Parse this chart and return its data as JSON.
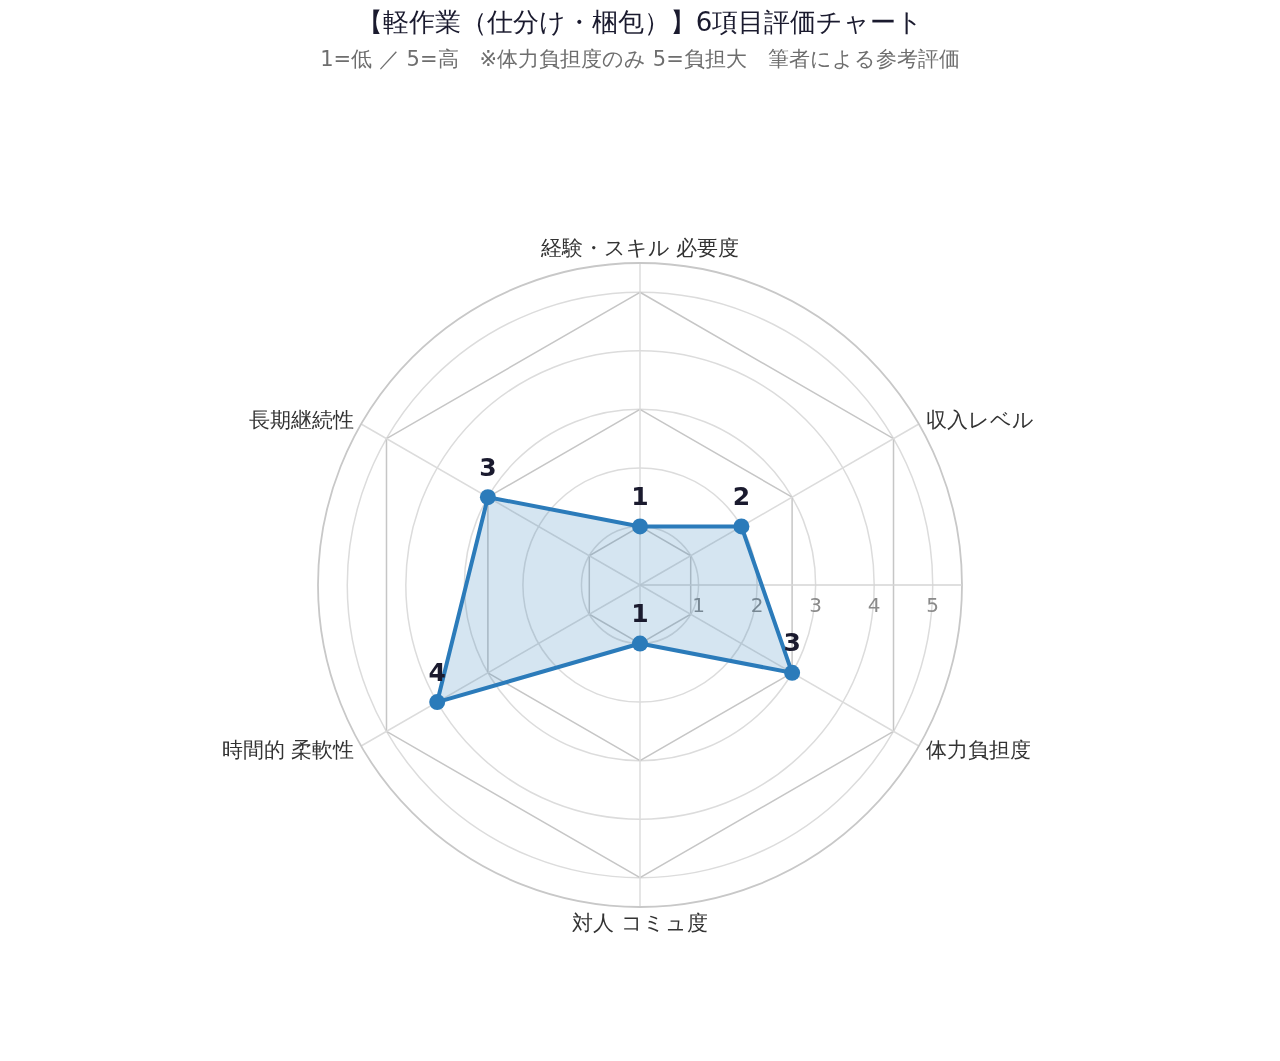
{
  "chart_data": {
    "type": "radar",
    "title": "【軽作業（仕分け・梱包）】6項目評価チャート",
    "subtitle": "1=低 ／ 5=高　※体力負担度のみ 5=負担大　筆者による参考評価",
    "categories": [
      "経験・スキル 必要度",
      "収入レベル",
      "体力負担度",
      "対人 コミュ度",
      "時間的 柔軟性",
      "長期継続性"
    ],
    "series": [
      {
        "color": "#2b7bba",
        "values": [
          1,
          2,
          3,
          1,
          4,
          3
        ]
      }
    ],
    "ylim": [
      0,
      5.5
    ],
    "yticks": [
      1,
      2,
      3,
      4,
      5
    ],
    "grid": true,
    "marker": "circle",
    "line_style": "solid",
    "data_labels": true
  }
}
